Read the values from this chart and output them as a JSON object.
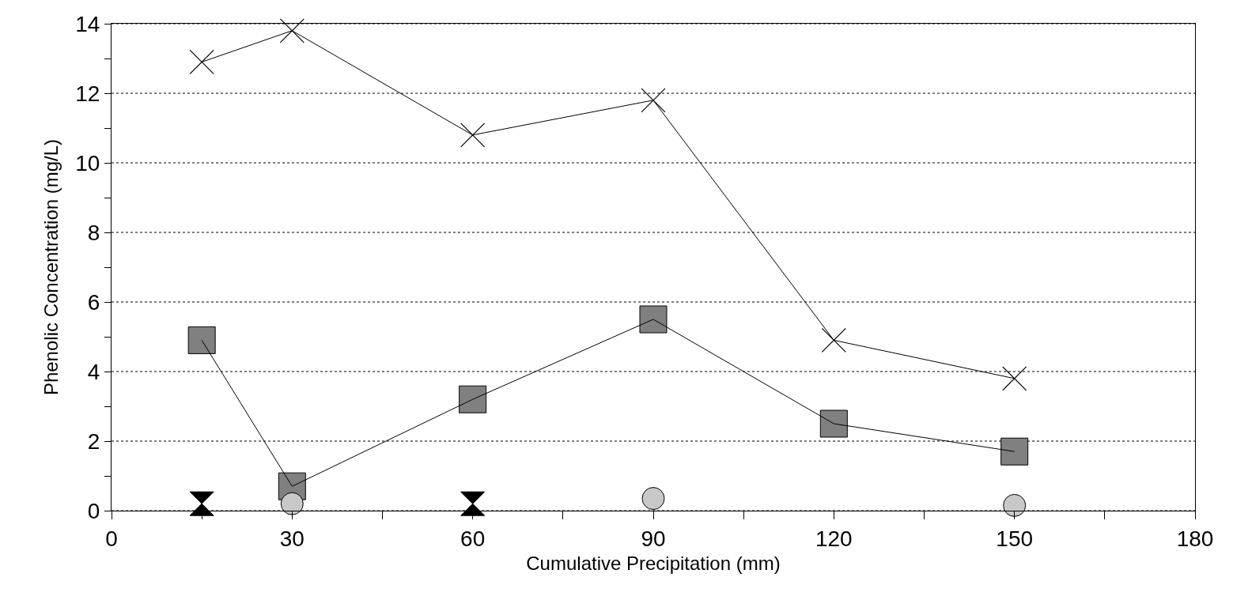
{
  "chart_data": {
    "type": "line",
    "xlabel": "Cumulative Precipitation (mm)",
    "ylabel": "Phenolic Concentration (mg/L)",
    "x": [
      15,
      30,
      60,
      90,
      120,
      150
    ],
    "series": [
      {
        "color": "#000000",
        "marker": "cross",
        "line_style": "solid",
        "values": [
          12.9,
          13.8,
          10.8,
          11.8,
          4.9,
          3.8
        ]
      },
      {
        "color": "#808080",
        "marker": "square",
        "line_style": "solid",
        "values": [
          4.9,
          0.7,
          3.2,
          5.5,
          2.5,
          1.7
        ]
      },
      {
        "type": "scatter",
        "color": "#000000",
        "values": [
          0.2,
          null,
          0.2,
          null,
          null,
          null
        ]
      },
      {
        "type": "scatter",
        "color": "#c8c8c8",
        "marker": "circle",
        "values": [
          null,
          0.2,
          null,
          0.35,
          null,
          0.15
        ]
      }
    ],
    "xlim": [
      0,
      180
    ],
    "xticks": [
      0,
      {
        "value": 15,
        "label": null
      },
      30,
      {
        "value": 45,
        "label": null
      },
      60,
      {
        "value": 75,
        "label": null
      },
      90,
      {
        "value": 105,
        "label": null
      },
      120,
      {
        "value": 135,
        "label": null
      },
      150,
      {
        "value": 165,
        "label": null
      },
      180
    ],
    "ylim": [
      0,
      14
    ],
    "yticks": [
      0,
      {
        "value": 1,
        "label": null
      },
      2,
      {
        "value": 3,
        "label": null
      },
      4,
      {
        "value": 5,
        "label": null
      },
      6,
      {
        "value": 7,
        "label": null
      },
      8,
      {
        "value": 9,
        "label": null
      },
      10,
      {
        "value": 11,
        "label": null
      },
      12,
      {
        "value": 13,
        "label": null
      },
      14
    ],
    "grid": "y"
  }
}
